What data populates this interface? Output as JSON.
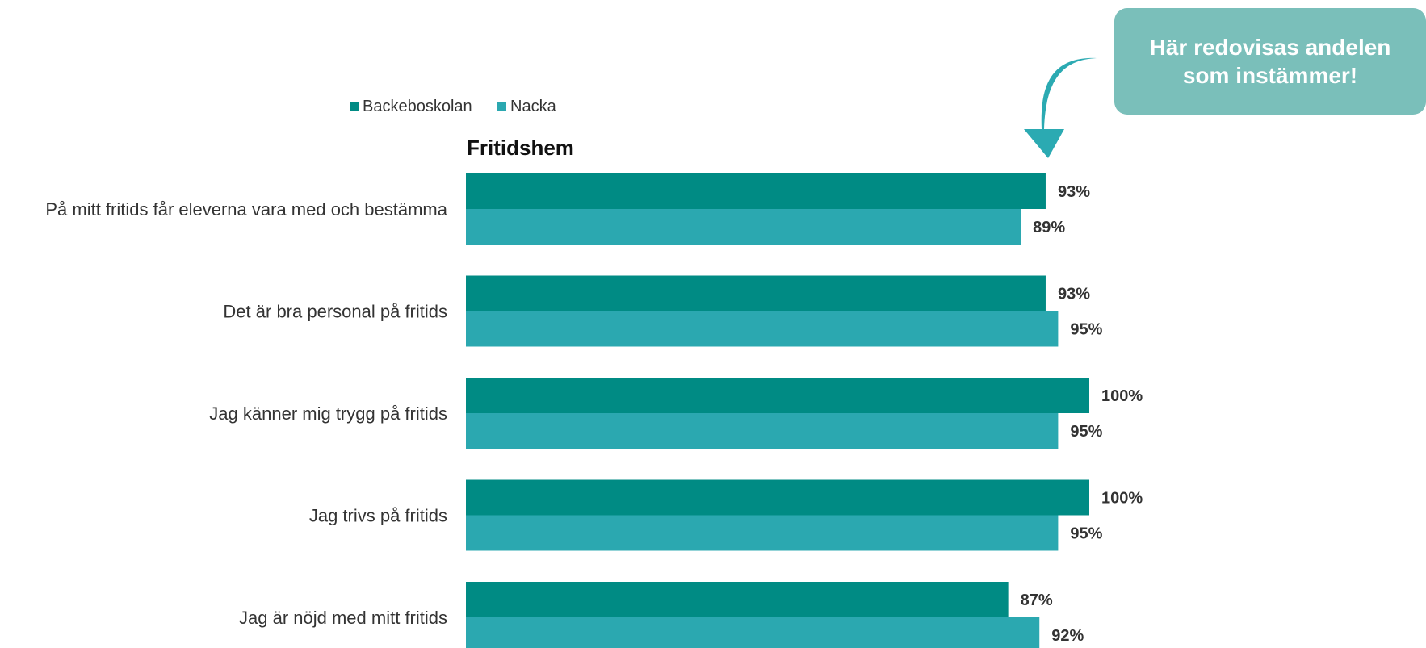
{
  "callout": {
    "text": "Här redovisas andelen som instämmer!",
    "color": "#7ABFBA"
  },
  "colors": {
    "arrow": "#2BAAB2",
    "series_a": "#008B84",
    "series_b": "#2BA8B0"
  },
  "chart_data": {
    "type": "bar",
    "orientation": "horizontal",
    "title": "Fritidshem",
    "legend_position": "top-left",
    "grid": false,
    "xlim": [
      0,
      100
    ],
    "categories": [
      "På mitt fritids får eleverna vara med och bestämma",
      "Det är bra personal på fritids",
      "Jag känner mig trygg på fritids",
      "Jag trivs på fritids",
      "Jag är nöjd med mitt fritids"
    ],
    "series": [
      {
        "name": "Backeboskolan",
        "values": [
          93,
          93,
          100,
          100,
          87
        ],
        "labels": [
          "93%",
          "93%",
          "100%",
          "100%",
          "87%"
        ],
        "color": "#008B84"
      },
      {
        "name": "Nacka",
        "values": [
          89,
          95,
          95,
          95,
          92
        ],
        "labels": [
          "89%",
          "95%",
          "95%",
          "95%",
          "92%"
        ],
        "color": "#2BA8B0"
      }
    ]
  }
}
